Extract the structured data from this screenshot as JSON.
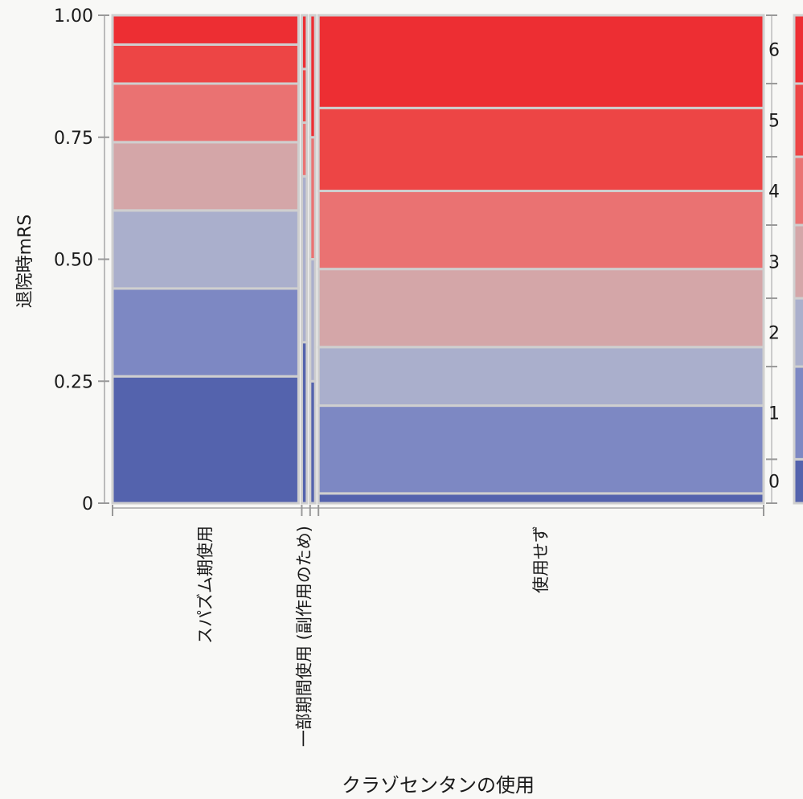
{
  "chart_data": {
    "type": "mosaic",
    "xlabel": "クラゾセンタンの使用",
    "ylabel": "退院時mRS",
    "ylim": [
      0,
      1
    ],
    "yticks": [
      "0",
      "0.25",
      "0.50",
      "0.75",
      "1.00"
    ],
    "levels": [
      "0",
      "1",
      "2",
      "3",
      "4",
      "5",
      "6"
    ],
    "colors": [
      "#5463ad",
      "#7d88c3",
      "#aaafcc",
      "#d4a6a8",
      "#ea7272",
      "#ed4545",
      "#ed2e33"
    ],
    "categories": [
      {
        "name": "スパズム期使用",
        "width_fraction": 0.29,
        "proportions": [
          0.26,
          0.18,
          0.16,
          0.14,
          0.12,
          0.08,
          0.06
        ]
      },
      {
        "name": "一部期間使用 (副作用のため)",
        "width_fraction": 0.008,
        "proportions": [
          0.33,
          0,
          0.34,
          0,
          0.11,
          0.11,
          0.11
        ]
      },
      {
        "name": "",
        "width_fraction": 0.008,
        "proportions": [
          0.25,
          0,
          0.25,
          0,
          0.25,
          0,
          0.25
        ]
      },
      {
        "name": "使用せず",
        "width_fraction": 0.694,
        "proportions": [
          0.02,
          0.18,
          0.12,
          0.16,
          0.16,
          0.17,
          0.19
        ]
      }
    ],
    "marginal_proportions": [
      0.09,
      0.19,
      0.14,
      0.15,
      0.14,
      0.15,
      0.14
    ]
  }
}
